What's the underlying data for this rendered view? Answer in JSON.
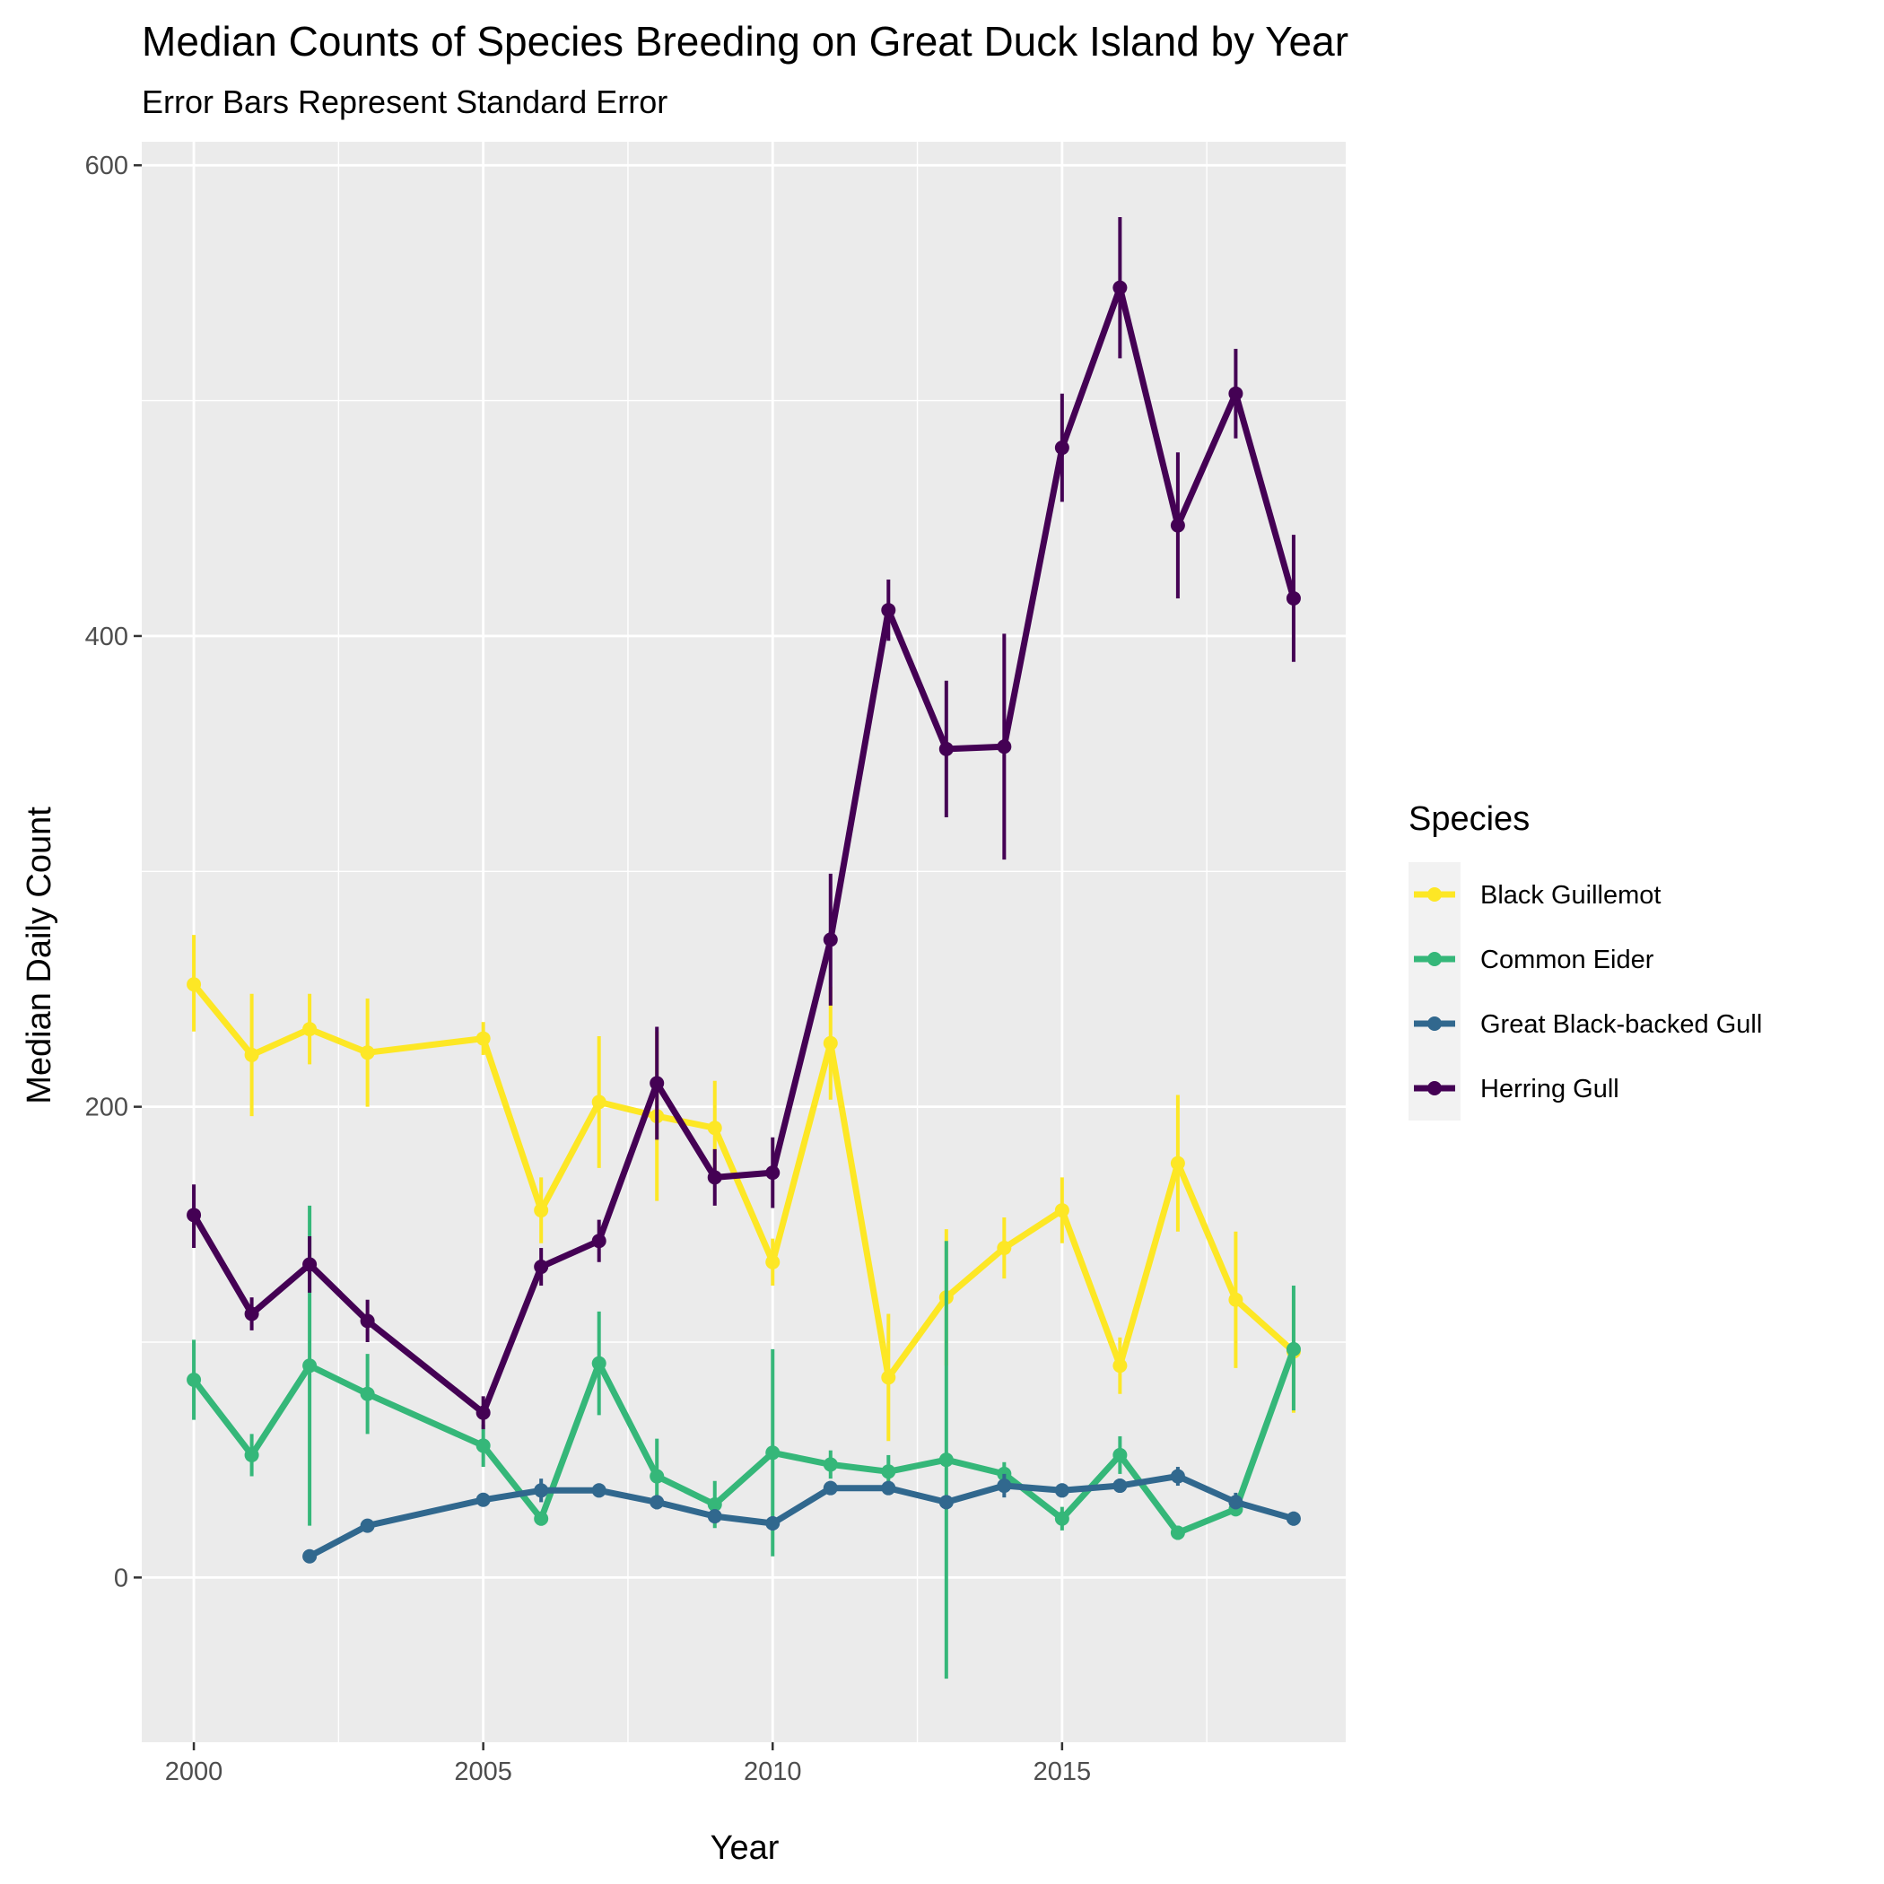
{
  "chart_data": {
    "type": "line",
    "title": "Median Counts of Species Breeding on Great Duck Island by Year",
    "subtitle": "Error Bars Represent Standard Error",
    "xlabel": "Year",
    "ylabel": "Median Daily Count",
    "xlim": [
      1999.1,
      2019.9
    ],
    "ylim": [
      -70,
      610
    ],
    "x_ticks": [
      2000,
      2005,
      2010,
      2015
    ],
    "y_ticks": [
      0,
      200,
      400,
      600
    ],
    "grid": true,
    "legend": {
      "title": "Species",
      "position": "right"
    },
    "series": [
      {
        "name": "Black Guillemot",
        "color": "#FDE725",
        "points": [
          {
            "x": 2000,
            "y": 252,
            "lo": 232,
            "hi": 273
          },
          {
            "x": 2001,
            "y": 222,
            "lo": 196,
            "hi": 248
          },
          {
            "x": 2002,
            "y": 233,
            "lo": 218,
            "hi": 248
          },
          {
            "x": 2003,
            "y": 223,
            "lo": 200,
            "hi": 246
          },
          {
            "x": 2005,
            "y": 229,
            "lo": 222,
            "hi": 236
          },
          {
            "x": 2006,
            "y": 156,
            "lo": 142,
            "hi": 170
          },
          {
            "x": 2007,
            "y": 202,
            "lo": 174,
            "hi": 230
          },
          {
            "x": 2008,
            "y": 196,
            "lo": 160,
            "hi": 232
          },
          {
            "x": 2009,
            "y": 191,
            "lo": 171,
            "hi": 211
          },
          {
            "x": 2010,
            "y": 134,
            "lo": 124,
            "hi": 144
          },
          {
            "x": 2011,
            "y": 227,
            "lo": 203,
            "hi": 251
          },
          {
            "x": 2012,
            "y": 85,
            "lo": 58,
            "hi": 112
          },
          {
            "x": 2013,
            "y": 119,
            "lo": 90,
            "hi": 148
          },
          {
            "x": 2014,
            "y": 140,
            "lo": 127,
            "hi": 153
          },
          {
            "x": 2015,
            "y": 156,
            "lo": 142,
            "hi": 170
          },
          {
            "x": 2016,
            "y": 90,
            "lo": 78,
            "hi": 102
          },
          {
            "x": 2017,
            "y": 176,
            "lo": 147,
            "hi": 205
          },
          {
            "x": 2018,
            "y": 118,
            "lo": 89,
            "hi": 147
          },
          {
            "x": 2019,
            "y": 96,
            "lo": 70,
            "hi": 118
          }
        ]
      },
      {
        "name": "Common Eider",
        "color": "#35B779",
        "points": [
          {
            "x": 2000,
            "y": 84,
            "lo": 67,
            "hi": 101
          },
          {
            "x": 2001,
            "y": 52,
            "lo": 43,
            "hi": 61
          },
          {
            "x": 2002,
            "y": 90,
            "lo": 22,
            "hi": 158
          },
          {
            "x": 2003,
            "y": 78,
            "lo": 61,
            "hi": 95
          },
          {
            "x": 2005,
            "y": 56,
            "lo": 47,
            "hi": 65
          },
          {
            "x": 2006,
            "y": 25,
            "lo": 22,
            "hi": 28
          },
          {
            "x": 2007,
            "y": 91,
            "lo": 69,
            "hi": 113
          },
          {
            "x": 2008,
            "y": 43,
            "lo": 29,
            "hi": 59
          },
          {
            "x": 2009,
            "y": 31,
            "lo": 21,
            "hi": 41
          },
          {
            "x": 2010,
            "y": 53,
            "lo": 9,
            "hi": 97
          },
          {
            "x": 2011,
            "y": 48,
            "lo": 42,
            "hi": 54
          },
          {
            "x": 2012,
            "y": 45,
            "lo": 38,
            "hi": 52
          },
          {
            "x": 2013,
            "y": 50,
            "lo": -43,
            "hi": 143
          },
          {
            "x": 2014,
            "y": 44,
            "lo": 39,
            "hi": 49
          },
          {
            "x": 2015,
            "y": 25,
            "lo": 20,
            "hi": 30
          },
          {
            "x": 2016,
            "y": 52,
            "lo": 44,
            "hi": 60
          },
          {
            "x": 2017,
            "y": 19,
            "lo": 16,
            "hi": 22
          },
          {
            "x": 2018,
            "y": 29,
            "lo": 26,
            "hi": 32
          },
          {
            "x": 2019,
            "y": 97,
            "lo": 71,
            "hi": 124
          }
        ]
      },
      {
        "name": "Great Black-backed Gull",
        "color": "#31688E",
        "points": [
          {
            "x": 2002,
            "y": 9,
            "lo": 7,
            "hi": 11
          },
          {
            "x": 2003,
            "y": 22,
            "lo": 20,
            "hi": 24
          },
          {
            "x": 2005,
            "y": 33,
            "lo": 31,
            "hi": 35
          },
          {
            "x": 2006,
            "y": 37,
            "lo": 32,
            "hi": 42
          },
          {
            "x": 2007,
            "y": 37,
            "lo": 34,
            "hi": 40
          },
          {
            "x": 2008,
            "y": 32,
            "lo": 29,
            "hi": 35
          },
          {
            "x": 2009,
            "y": 26,
            "lo": 23,
            "hi": 29
          },
          {
            "x": 2010,
            "y": 23,
            "lo": 20,
            "hi": 26
          },
          {
            "x": 2011,
            "y": 38,
            "lo": 35,
            "hi": 41
          },
          {
            "x": 2012,
            "y": 38,
            "lo": 35,
            "hi": 41
          },
          {
            "x": 2013,
            "y": 32,
            "lo": 29,
            "hi": 35
          },
          {
            "x": 2014,
            "y": 39,
            "lo": 34,
            "hi": 44
          },
          {
            "x": 2015,
            "y": 37,
            "lo": 34,
            "hi": 40
          },
          {
            "x": 2016,
            "y": 39,
            "lo": 36,
            "hi": 42
          },
          {
            "x": 2017,
            "y": 43,
            "lo": 39,
            "hi": 47
          },
          {
            "x": 2018,
            "y": 32,
            "lo": 29,
            "hi": 36
          },
          {
            "x": 2019,
            "y": 25,
            "lo": 22,
            "hi": 28
          }
        ]
      },
      {
        "name": "Herring Gull",
        "color": "#440154",
        "points": [
          {
            "x": 2000,
            "y": 154,
            "lo": 140,
            "hi": 167
          },
          {
            "x": 2001,
            "y": 112,
            "lo": 105,
            "hi": 119
          },
          {
            "x": 2002,
            "y": 133,
            "lo": 121,
            "hi": 145
          },
          {
            "x": 2003,
            "y": 109,
            "lo": 100,
            "hi": 118
          },
          {
            "x": 2005,
            "y": 70,
            "lo": 63,
            "hi": 77
          },
          {
            "x": 2006,
            "y": 132,
            "lo": 124,
            "hi": 140
          },
          {
            "x": 2007,
            "y": 143,
            "lo": 134,
            "hi": 152
          },
          {
            "x": 2008,
            "y": 210,
            "lo": 186,
            "hi": 234
          },
          {
            "x": 2009,
            "y": 170,
            "lo": 158,
            "hi": 182
          },
          {
            "x": 2010,
            "y": 172,
            "lo": 157,
            "hi": 187
          },
          {
            "x": 2011,
            "y": 271,
            "lo": 243,
            "hi": 299
          },
          {
            "x": 2012,
            "y": 411,
            "lo": 398,
            "hi": 424
          },
          {
            "x": 2013,
            "y": 352,
            "lo": 323,
            "hi": 381
          },
          {
            "x": 2014,
            "y": 353,
            "lo": 305,
            "hi": 401
          },
          {
            "x": 2015,
            "y": 480,
            "lo": 457,
            "hi": 503
          },
          {
            "x": 2016,
            "y": 548,
            "lo": 518,
            "hi": 578
          },
          {
            "x": 2017,
            "y": 447,
            "lo": 416,
            "hi": 478
          },
          {
            "x": 2018,
            "y": 503,
            "lo": 484,
            "hi": 522
          },
          {
            "x": 2019,
            "y": 416,
            "lo": 389,
            "hi": 443
          }
        ]
      }
    ]
  }
}
